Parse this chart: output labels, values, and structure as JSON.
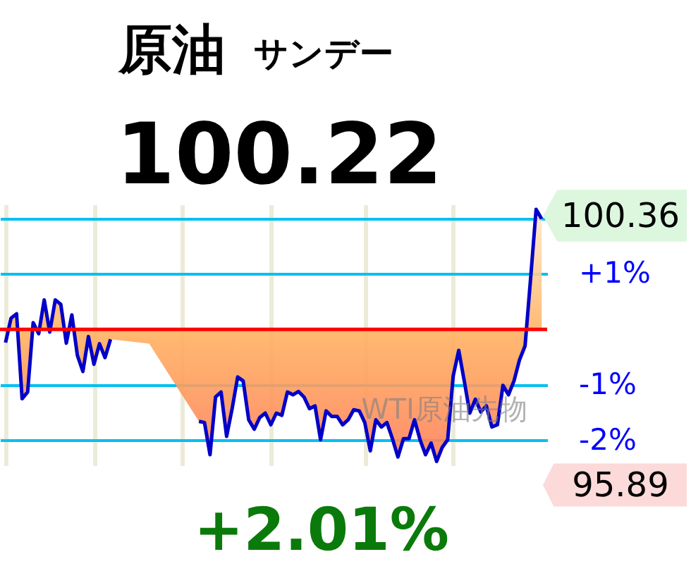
{
  "chart_data": {
    "type": "area",
    "title": "原油",
    "subtitle": "サンデー",
    "annotations": [
      "100.22",
      "+2.01%",
      "WTI原油先物",
      "100.36",
      "95.89"
    ],
    "categories": [
      null,
      null,
      null,
      null,
      null,
      null,
      null,
      null,
      null,
      null,
      null,
      null,
      null,
      null,
      null,
      null,
      null,
      null,
      null,
      null,
      null,
      null,
      null,
      null,
      null,
      null,
      null,
      null,
      null,
      null,
      null,
      null,
      null,
      null,
      null,
      null,
      null,
      null,
      null,
      null,
      null,
      null,
      null,
      null,
      null,
      null,
      null,
      null,
      null,
      null,
      null,
      null,
      null,
      null,
      null,
      null,
      null,
      null,
      null,
      null,
      null,
      null,
      null,
      null,
      null,
      null,
      null,
      null,
      null,
      null,
      null,
      null,
      null,
      null,
      null,
      null,
      null,
      null,
      null,
      null,
      null,
      null,
      null,
      null,
      null,
      null,
      null,
      null,
      null,
      null,
      null,
      null,
      null,
      null,
      null,
      null,
      null,
      null
    ],
    "series": [
      {
        "color": "#0000c8",
        "values": [
          -0.24,
          0.2,
          0.28,
          -1.25,
          -1.13,
          0.12,
          -0.08,
          0.53,
          -0.05,
          0.53,
          0.45,
          -0.25,
          0.26,
          -0.47,
          -0.76,
          -0.13,
          -0.63,
          -0.26,
          -0.51,
          -0.18,
          null,
          null,
          null,
          null,
          null,
          null,
          -0.26,
          null,
          null,
          null,
          null,
          null,
          null,
          null,
          null,
          -1.66,
          -1.68,
          -2.26,
          -1.22,
          -1.13,
          -1.93,
          -1.43,
          -0.86,
          -0.93,
          -1.63,
          -1.8,
          -1.59,
          -1.51,
          -1.72,
          -1.51,
          -1.55,
          -1.13,
          -1.18,
          -1.12,
          -1.22,
          -1.43,
          -1.38,
          -1.99,
          -1.47,
          -1.57,
          -1.57,
          -1.72,
          -1.63,
          -1.45,
          -1.47,
          -1.68,
          -2.19,
          -1.63,
          -1.76,
          -1.68,
          -1.97,
          -2.3,
          -1.97,
          -1.97,
          -1.63,
          -1.99,
          -2.26,
          -2.05,
          -2.38,
          -2.13,
          -1.99,
          -0.84,
          -0.38,
          -0.93,
          -1.51,
          -1.26,
          -1.49,
          -1.38,
          -1.76,
          -1.72,
          -1.01,
          -1.18,
          -0.93,
          -0.55,
          -0.3,
          0.91,
          2.16,
          1.99
        ]
      }
    ],
    "ylim": [
      -2.45,
      2.25
    ],
    "yticks": [
      {
        "value": 2,
        "label": null
      },
      {
        "value": 1,
        "label": "+1%"
      },
      {
        "value": -1,
        "label": "-1%"
      },
      {
        "value": -2,
        "label": "-2%"
      }
    ],
    "ref_lines": [
      {
        "axis": "y",
        "value": 0,
        "color": "#ff0000"
      }
    ],
    "grid": true,
    "line_style": "solid"
  }
}
